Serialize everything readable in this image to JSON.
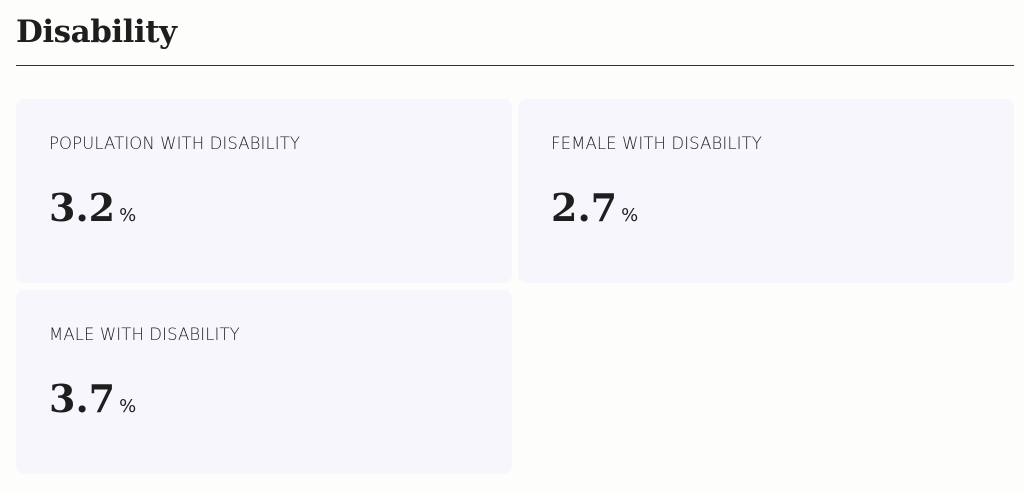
{
  "header": {
    "title": "Disability"
  },
  "cards": [
    {
      "label": "POPULATION WITH DISABILITY",
      "value": "3.2",
      "unit": "%"
    },
    {
      "label": "FEMALE WITH DISABILITY",
      "value": "2.7",
      "unit": "%"
    },
    {
      "label": "MALE WITH DISABILITY",
      "value": "3.7",
      "unit": "%"
    }
  ]
}
